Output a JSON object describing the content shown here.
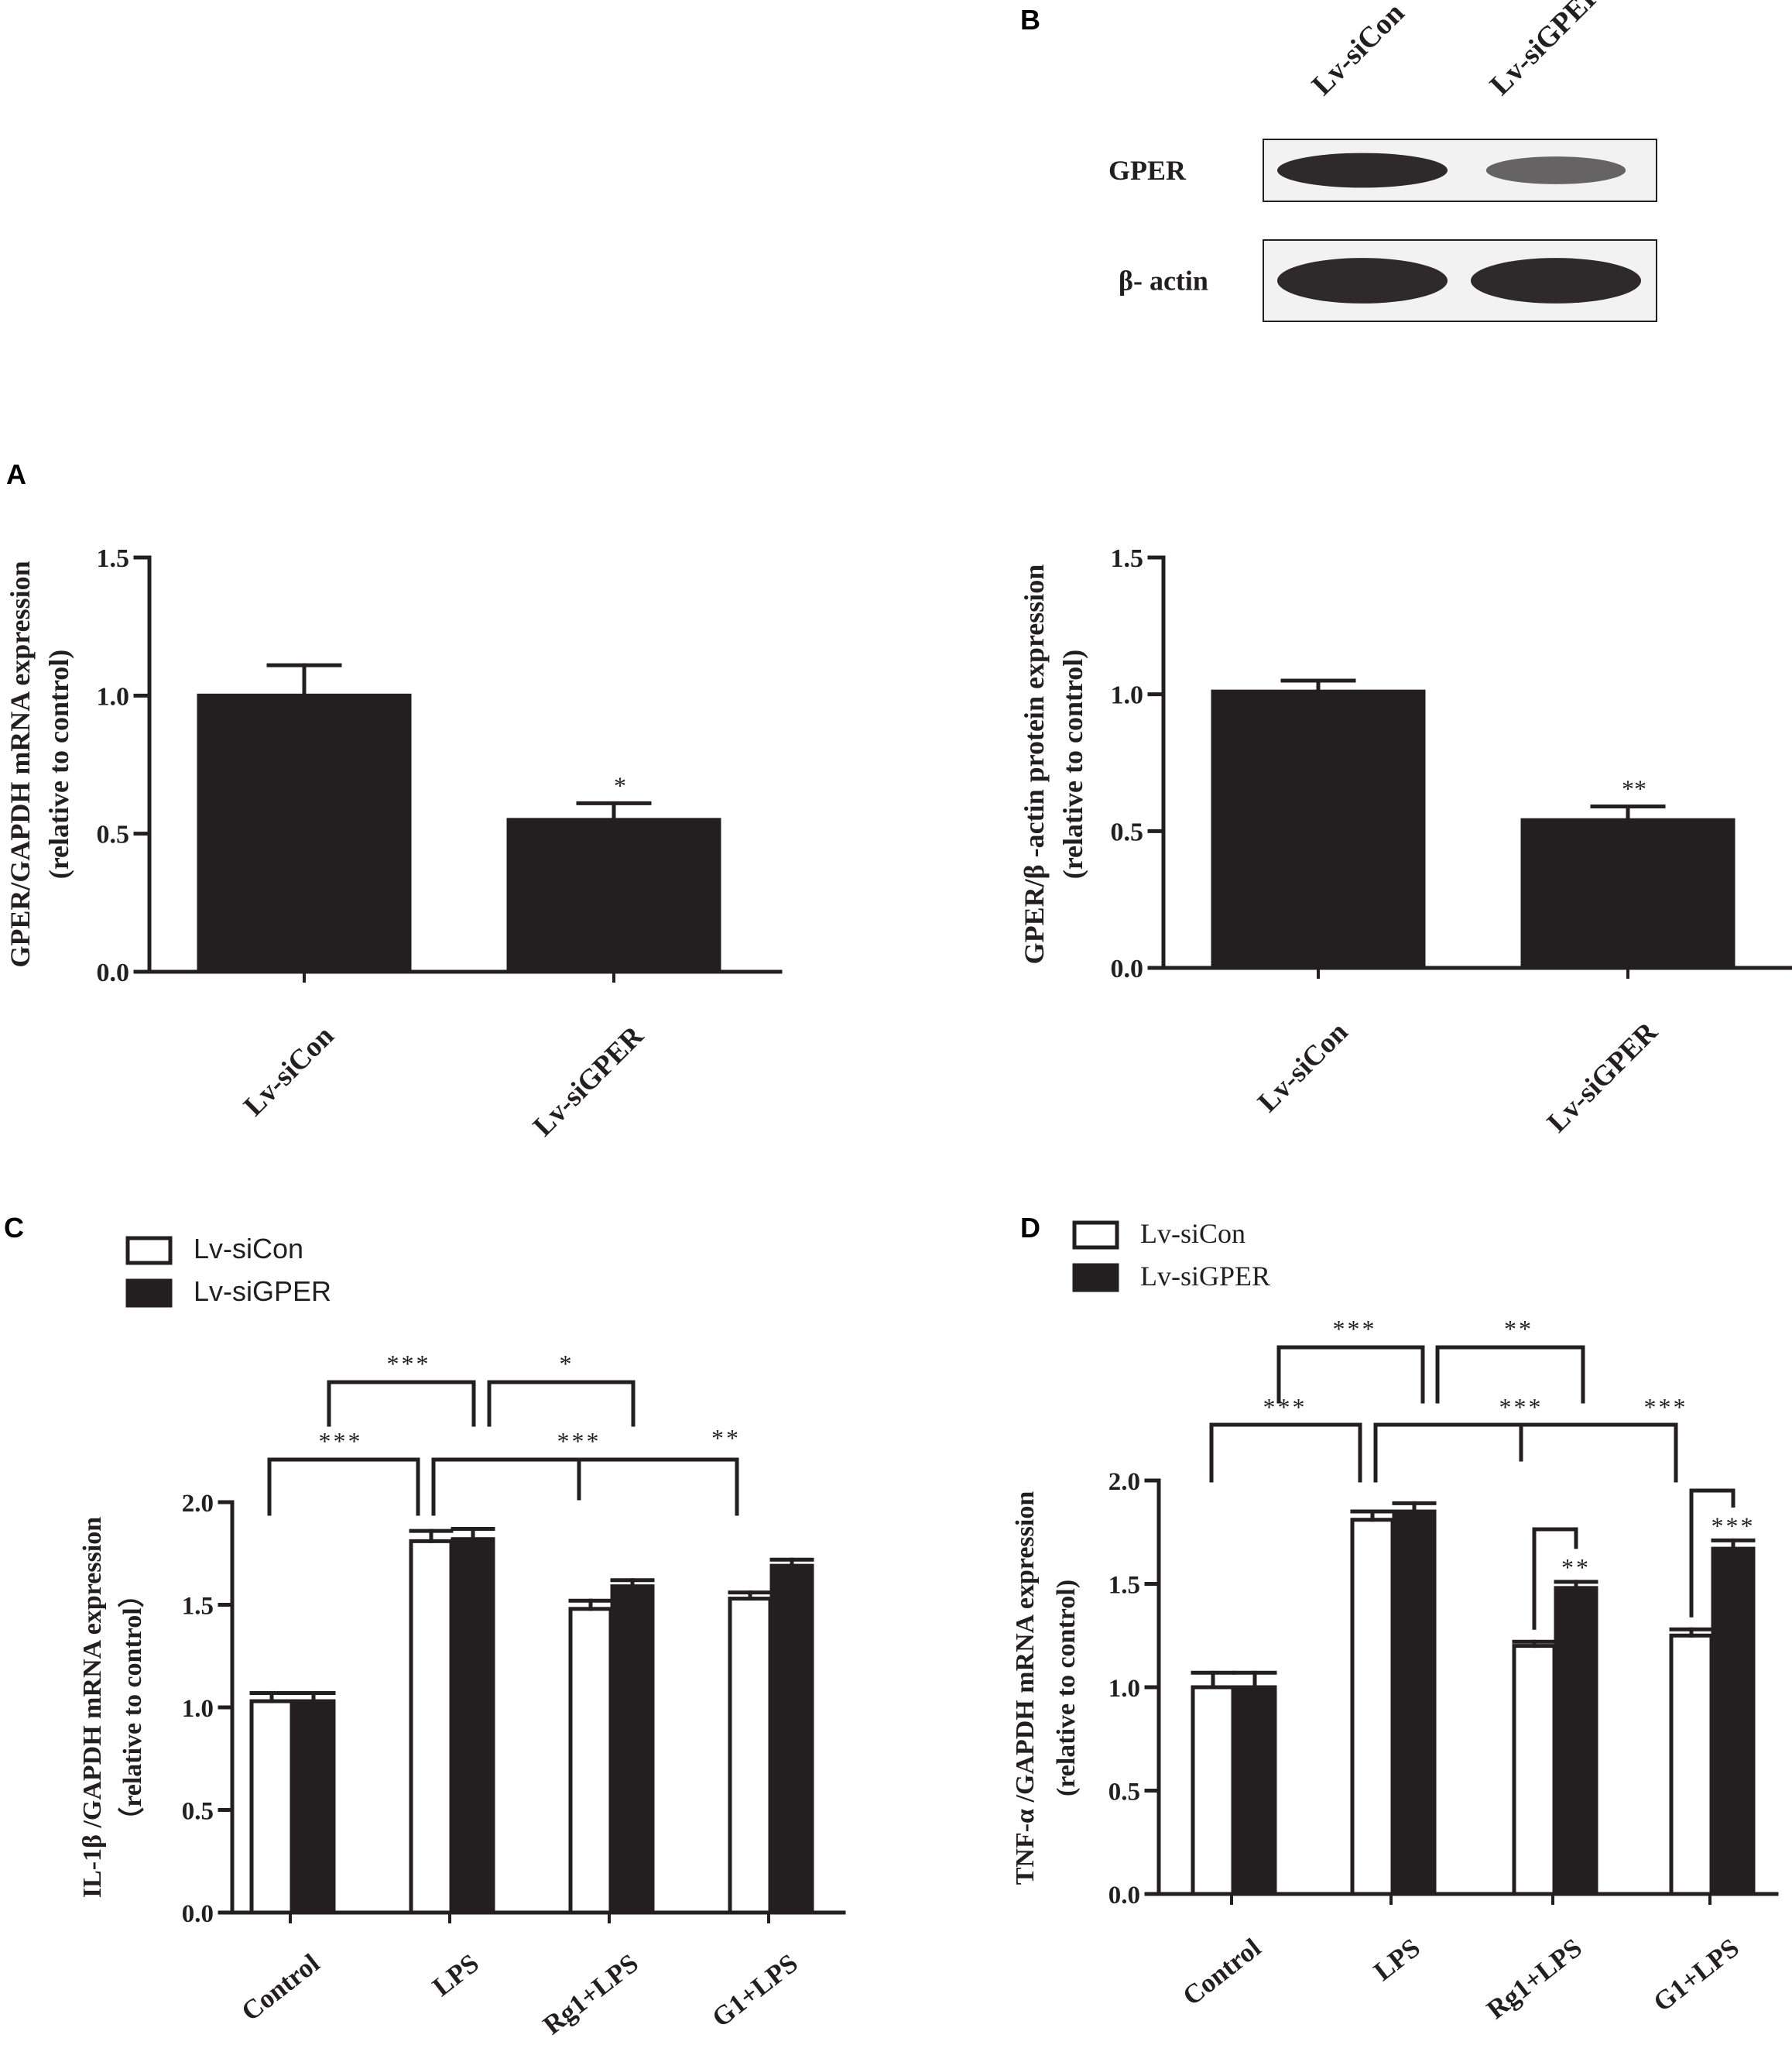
{
  "panel_letters": {
    "a": "A",
    "b": "B",
    "c": "C",
    "d": "D"
  },
  "colors": {
    "dark": "#231f20",
    "open": "#ffffff",
    "blot_bg": "#f2f2f2"
  },
  "western_blot": {
    "lane_labels": [
      "Lv-siCon",
      "Lv-siGPER"
    ],
    "rows": [
      {
        "label": "GPER",
        "intensities": [
          1.0,
          0.55
        ]
      },
      {
        "label": "β- actin",
        "intensities": [
          1.0,
          1.0
        ]
      }
    ]
  },
  "chart_data": [
    {
      "id": "A",
      "type": "bar",
      "ylabel_lines": [
        "GPER/GAPDH mRNA expression",
        "(relative to control)"
      ],
      "categories": [
        "Lv-siCon",
        "Lv-siGPER"
      ],
      "values": [
        1.0,
        0.55
      ],
      "errors": [
        0.11,
        0.06
      ],
      "sig": [
        "",
        "*"
      ],
      "ylim": [
        0,
        1.5
      ],
      "yticks": [
        "0.0",
        "0.5",
        "1.0",
        "1.5"
      ],
      "ytick_values": [
        0,
        0.5,
        1.0,
        1.5
      ]
    },
    {
      "id": "B",
      "type": "bar",
      "ylabel_lines": [
        "GPER/β -actin protein expression",
        "(relative to control)"
      ],
      "categories": [
        "Lv-siCon",
        "Lv-siGPER"
      ],
      "values": [
        1.01,
        0.54
      ],
      "errors": [
        0.04,
        0.05
      ],
      "sig": [
        "",
        "**"
      ],
      "ylim": [
        0,
        1.5
      ],
      "yticks": [
        "0.0",
        "0.5",
        "1.0",
        "1.5"
      ],
      "ytick_values": [
        0,
        0.5,
        1.0,
        1.5
      ]
    },
    {
      "id": "C",
      "type": "bar",
      "ylabel_lines": [
        "IL-1β /GAPDH mRNA expression",
        "（relative to control）"
      ],
      "categories": [
        "Control",
        "LPS",
        "Rg1+LPS",
        "G1+LPS"
      ],
      "series": [
        {
          "name": "Lv-siCon",
          "values": [
            1.03,
            1.81,
            1.48,
            1.53
          ],
          "errors": [
            0.04,
            0.05,
            0.04,
            0.03
          ]
        },
        {
          "name": "Lv-siGPER",
          "values": [
            1.03,
            1.82,
            1.59,
            1.69
          ],
          "errors": [
            0.04,
            0.05,
            0.03,
            0.03
          ]
        }
      ],
      "legend": [
        "Lv-siCon",
        "Lv-siGPER"
      ],
      "brackets": [
        "***",
        "*",
        "***",
        "***",
        "**"
      ],
      "ylim": [
        0,
        2.0
      ],
      "yticks": [
        "0.0",
        "0.5",
        "1.0",
        "1.5",
        "2.0"
      ],
      "ytick_values": [
        0,
        0.5,
        1.0,
        1.5,
        2.0
      ]
    },
    {
      "id": "D",
      "type": "bar",
      "ylabel_lines": [
        "TNF-α /GAPDH mRNA expression",
        "(relative to control)"
      ],
      "categories": [
        "Control",
        "LPS",
        "Rg1+LPS",
        "G1+LPS"
      ],
      "series": [
        {
          "name": "Lv-siCon",
          "values": [
            1.0,
            1.81,
            1.2,
            1.25
          ],
          "errors": [
            0.07,
            0.04,
            0.02,
            0.03
          ]
        },
        {
          "name": "Lv-siGPER",
          "values": [
            1.0,
            1.85,
            1.48,
            1.67
          ],
          "errors": [
            0.07,
            0.04,
            0.03,
            0.04
          ]
        }
      ],
      "legend": [
        "Lv-siCon",
        "Lv-siGPER"
      ],
      "brackets": [
        "***",
        "**",
        "***",
        "***",
        "***"
      ],
      "pair_sig": [
        "**",
        "***"
      ],
      "ylim": [
        0,
        2.0
      ],
      "yticks": [
        "0.0",
        "0.5",
        "1.0",
        "1.5",
        "2.0"
      ],
      "ytick_values": [
        0,
        0.5,
        1.0,
        1.5,
        2.0
      ]
    }
  ]
}
